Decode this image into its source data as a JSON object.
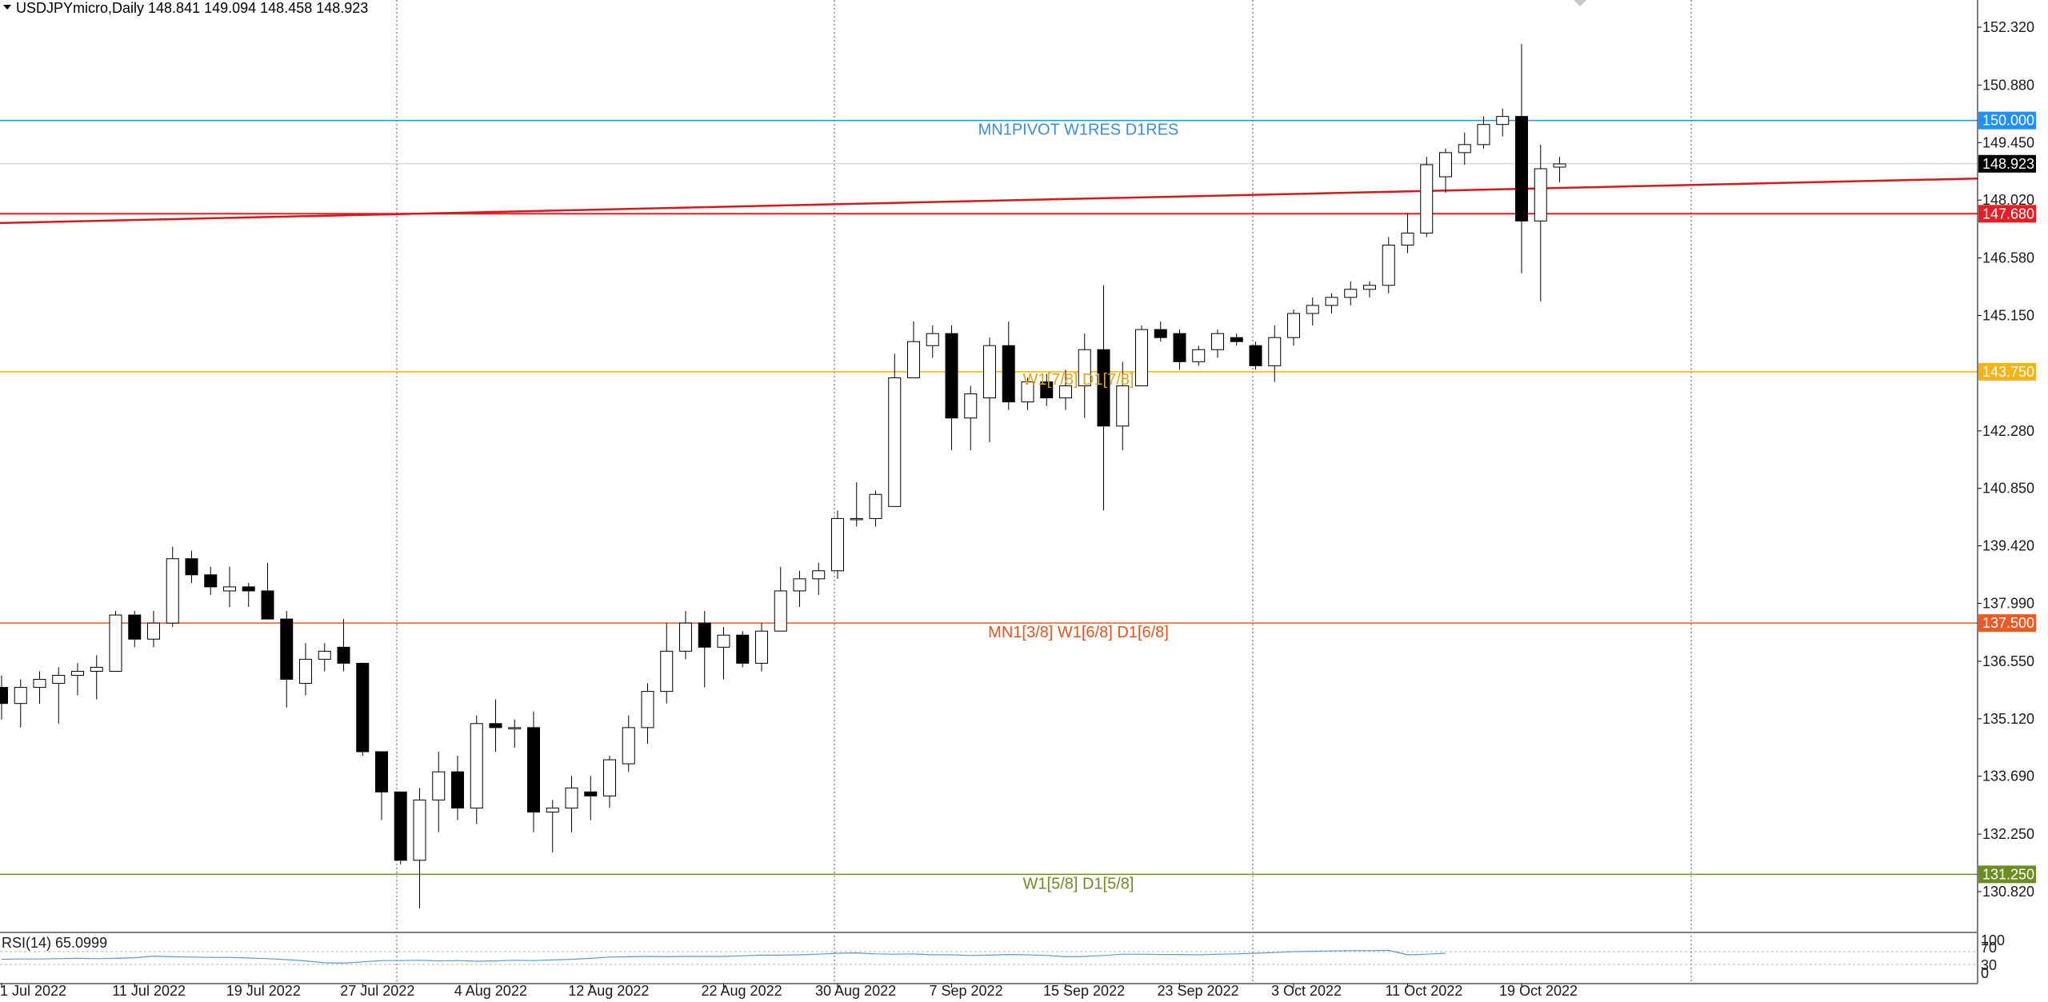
{
  "header": {
    "symbol_line": "USDJPYmicro,Daily  148.841 149.094 148.458 148.923"
  },
  "rsi": {
    "label": "RSI(14) 65.0999",
    "levels": [
      "100",
      "70",
      "30",
      "0"
    ],
    "values": [
      46,
      47,
      47,
      48,
      49,
      48,
      49,
      51,
      56,
      54,
      53,
      52,
      52,
      50,
      48,
      45,
      41,
      35,
      34,
      38,
      42,
      42,
      43,
      41,
      42,
      40,
      41,
      43,
      42,
      44,
      46,
      49,
      53,
      54,
      55,
      54,
      55,
      55,
      55,
      57,
      59,
      59,
      60,
      62,
      65,
      66,
      63,
      62,
      63,
      60,
      60,
      58,
      59,
      61,
      60,
      58,
      54,
      55,
      58,
      62,
      62,
      61,
      61,
      60,
      62,
      63,
      65,
      67,
      70,
      71,
      72,
      73,
      73,
      74,
      60,
      62,
      65
    ]
  },
  "price_tags": {
    "current": "148.923",
    "levels": [
      {
        "text": "150.000",
        "color": "#1e90ff"
      },
      {
        "text": "147.680",
        "color": "#e31e24"
      },
      {
        "text": "143.750",
        "color": "#f5b317"
      },
      {
        "text": "137.500",
        "color": "#f05a22"
      },
      {
        "text": "131.250",
        "color": "#6b8e23"
      }
    ]
  },
  "level_labels": [
    {
      "text": "MN1PIVOT W1RES D1RES",
      "color": "#3a8fd9"
    },
    {
      "text": "W1[7/8] D1[7/8]",
      "color": "#e0a31c"
    },
    {
      "text": "MN1[3/8] W1[6/8] D1[6/8]",
      "color": "#e5561f"
    },
    {
      "text": "W1[5/8] D1[5/8]",
      "color": "#6b8e23"
    }
  ],
  "chart_data": {
    "type": "candlestick",
    "symbol": "USDJPYmicro",
    "timeframe": "Daily",
    "last_ohlc": {
      "open": 148.841,
      "high": 149.094,
      "low": 148.458,
      "close": 148.923
    },
    "y_ticks": [
      152.32,
      150.88,
      149.45,
      148.02,
      146.58,
      145.15,
      142.28,
      140.85,
      139.42,
      137.99,
      136.55,
      135.12,
      133.69,
      132.25,
      130.82
    ],
    "y_tick_labels": [
      "152.320",
      "150.880",
      "149.450",
      "148.020",
      "146.580",
      "145.150",
      "142.280",
      "140.850",
      "139.420",
      "137.990",
      "136.550",
      "135.120",
      "133.690",
      "132.250",
      "130.820"
    ],
    "ylim": [
      129.6,
      152.9
    ],
    "x_tick_labels": [
      "1 Jul 2022",
      "11 Jul 2022",
      "19 Jul 2022",
      "27 Jul 2022",
      "4 Aug 2022",
      "12 Aug 2022",
      "22 Aug 2022",
      "30 Aug 2022",
      "7 Sep 2022",
      "15 Sep 2022",
      "23 Sep 2022",
      "3 Oct 2022",
      "11 Oct 2022",
      "19 Oct 2022"
    ],
    "x_tick_bar_index": [
      0,
      7,
      13,
      19,
      25,
      31,
      38,
      44,
      50,
      56,
      62,
      68,
      74,
      80
    ],
    "horizontal_levels": [
      150.0,
      147.68,
      143.75,
      137.5,
      131.25
    ],
    "trendline": {
      "from_bar": 0,
      "from_price": 147.45,
      "to_bar": 110,
      "to_price": 148.62
    },
    "candles": [
      {
        "o": 135.9,
        "h": 136.2,
        "l": 135.1,
        "c": 135.5
      },
      {
        "o": 135.5,
        "h": 136.1,
        "l": 134.9,
        "c": 135.9
      },
      {
        "o": 135.9,
        "h": 136.3,
        "l": 135.5,
        "c": 136.1
      },
      {
        "o": 136.0,
        "h": 136.4,
        "l": 135.0,
        "c": 136.2
      },
      {
        "o": 136.2,
        "h": 136.5,
        "l": 135.7,
        "c": 136.3
      },
      {
        "o": 136.3,
        "h": 136.7,
        "l": 135.6,
        "c": 136.4
      },
      {
        "o": 136.3,
        "h": 137.8,
        "l": 136.3,
        "c": 137.7
      },
      {
        "o": 137.7,
        "h": 137.8,
        "l": 136.9,
        "c": 137.1
      },
      {
        "o": 137.1,
        "h": 137.8,
        "l": 136.9,
        "c": 137.5
      },
      {
        "o": 137.5,
        "h": 139.4,
        "l": 137.4,
        "c": 139.1
      },
      {
        "o": 139.1,
        "h": 139.3,
        "l": 138.5,
        "c": 138.7
      },
      {
        "o": 138.7,
        "h": 138.9,
        "l": 138.2,
        "c": 138.4
      },
      {
        "o": 138.3,
        "h": 138.9,
        "l": 137.9,
        "c": 138.4
      },
      {
        "o": 138.4,
        "h": 138.5,
        "l": 137.9,
        "c": 138.3
      },
      {
        "o": 138.3,
        "h": 139.0,
        "l": 137.6,
        "c": 137.6
      },
      {
        "o": 137.6,
        "h": 137.8,
        "l": 135.4,
        "c": 136.1
      },
      {
        "o": 136.0,
        "h": 137.0,
        "l": 135.7,
        "c": 136.6
      },
      {
        "o": 136.6,
        "h": 137.0,
        "l": 136.3,
        "c": 136.8
      },
      {
        "o": 136.9,
        "h": 137.6,
        "l": 136.3,
        "c": 136.5
      },
      {
        "o": 136.5,
        "h": 136.5,
        "l": 134.2,
        "c": 134.3
      },
      {
        "o": 134.3,
        "h": 134.3,
        "l": 132.6,
        "c": 133.3
      },
      {
        "o": 133.3,
        "h": 133.3,
        "l": 131.5,
        "c": 131.6
      },
      {
        "o": 131.6,
        "h": 133.4,
        "l": 130.4,
        "c": 133.1
      },
      {
        "o": 133.1,
        "h": 134.3,
        "l": 132.3,
        "c": 133.8
      },
      {
        "o": 133.8,
        "h": 134.2,
        "l": 132.6,
        "c": 132.9
      },
      {
        "o": 132.9,
        "h": 135.2,
        "l": 132.5,
        "c": 135.0
      },
      {
        "o": 135.0,
        "h": 135.6,
        "l": 134.3,
        "c": 134.9
      },
      {
        "o": 134.9,
        "h": 135.1,
        "l": 134.4,
        "c": 134.9
      },
      {
        "o": 134.9,
        "h": 135.3,
        "l": 132.3,
        "c": 132.8
      },
      {
        "o": 132.8,
        "h": 133.1,
        "l": 131.8,
        "c": 132.9
      },
      {
        "o": 132.9,
        "h": 133.7,
        "l": 132.3,
        "c": 133.4
      },
      {
        "o": 133.3,
        "h": 133.7,
        "l": 132.6,
        "c": 133.2
      },
      {
        "o": 133.2,
        "h": 134.2,
        "l": 132.9,
        "c": 134.1
      },
      {
        "o": 134.0,
        "h": 135.2,
        "l": 133.8,
        "c": 134.9
      },
      {
        "o": 134.9,
        "h": 136.0,
        "l": 134.5,
        "c": 135.8
      },
      {
        "o": 135.8,
        "h": 137.5,
        "l": 135.5,
        "c": 136.8
      },
      {
        "o": 136.8,
        "h": 137.8,
        "l": 136.6,
        "c": 137.5
      },
      {
        "o": 137.5,
        "h": 137.8,
        "l": 135.9,
        "c": 136.9
      },
      {
        "o": 136.9,
        "h": 137.4,
        "l": 136.1,
        "c": 137.2
      },
      {
        "o": 137.2,
        "h": 137.3,
        "l": 136.4,
        "c": 136.5
      },
      {
        "o": 136.5,
        "h": 137.5,
        "l": 136.3,
        "c": 137.3
      },
      {
        "o": 137.3,
        "h": 138.9,
        "l": 137.3,
        "c": 138.3
      },
      {
        "o": 138.3,
        "h": 138.8,
        "l": 137.9,
        "c": 138.6
      },
      {
        "o": 138.6,
        "h": 139.0,
        "l": 138.2,
        "c": 138.8
      },
      {
        "o": 138.8,
        "h": 140.3,
        "l": 138.6,
        "c": 140.1
      },
      {
        "o": 140.1,
        "h": 141.0,
        "l": 139.9,
        "c": 140.1
      },
      {
        "o": 140.1,
        "h": 140.8,
        "l": 139.9,
        "c": 140.7
      },
      {
        "o": 140.4,
        "h": 144.2,
        "l": 140.4,
        "c": 143.6
      },
      {
        "o": 143.6,
        "h": 145.0,
        "l": 143.6,
        "c": 144.5
      },
      {
        "o": 144.4,
        "h": 144.9,
        "l": 144.1,
        "c": 144.7
      },
      {
        "o": 144.7,
        "h": 144.9,
        "l": 141.8,
        "c": 142.6
      },
      {
        "o": 142.6,
        "h": 143.4,
        "l": 141.8,
        "c": 143.2
      },
      {
        "o": 143.1,
        "h": 144.6,
        "l": 142.0,
        "c": 144.4
      },
      {
        "o": 144.4,
        "h": 145.0,
        "l": 142.8,
        "c": 143.0
      },
      {
        "o": 143.0,
        "h": 143.6,
        "l": 142.8,
        "c": 143.5
      },
      {
        "o": 143.5,
        "h": 143.7,
        "l": 142.9,
        "c": 143.1
      },
      {
        "o": 143.1,
        "h": 143.8,
        "l": 142.8,
        "c": 143.4
      },
      {
        "o": 143.4,
        "h": 144.7,
        "l": 142.6,
        "c": 144.3
      },
      {
        "o": 144.3,
        "h": 145.9,
        "l": 140.3,
        "c": 142.4
      },
      {
        "o": 142.4,
        "h": 144.0,
        "l": 141.8,
        "c": 143.4
      },
      {
        "o": 143.4,
        "h": 144.9,
        "l": 143.4,
        "c": 144.8
      },
      {
        "o": 144.8,
        "h": 145.0,
        "l": 144.5,
        "c": 144.6
      },
      {
        "o": 144.7,
        "h": 144.8,
        "l": 143.8,
        "c": 144.0
      },
      {
        "o": 144.0,
        "h": 144.4,
        "l": 143.9,
        "c": 144.3
      },
      {
        "o": 144.3,
        "h": 144.8,
        "l": 144.1,
        "c": 144.7
      },
      {
        "o": 144.6,
        "h": 144.7,
        "l": 144.4,
        "c": 144.5
      },
      {
        "o": 144.4,
        "h": 144.5,
        "l": 143.8,
        "c": 143.9
      },
      {
        "o": 143.9,
        "h": 144.9,
        "l": 143.5,
        "c": 144.6
      },
      {
        "o": 144.6,
        "h": 145.3,
        "l": 144.4,
        "c": 145.2
      },
      {
        "o": 145.2,
        "h": 145.6,
        "l": 144.9,
        "c": 145.4
      },
      {
        "o": 145.4,
        "h": 145.7,
        "l": 145.2,
        "c": 145.6
      },
      {
        "o": 145.6,
        "h": 146.0,
        "l": 145.4,
        "c": 145.8
      },
      {
        "o": 145.8,
        "h": 146.0,
        "l": 145.6,
        "c": 145.9
      },
      {
        "o": 145.9,
        "h": 147.1,
        "l": 145.7,
        "c": 146.9
      },
      {
        "o": 146.9,
        "h": 147.7,
        "l": 146.7,
        "c": 147.2
      },
      {
        "o": 147.2,
        "h": 149.1,
        "l": 147.1,
        "c": 148.9
      },
      {
        "o": 148.6,
        "h": 149.3,
        "l": 148.2,
        "c": 149.2
      },
      {
        "o": 149.2,
        "h": 149.7,
        "l": 148.9,
        "c": 149.4
      },
      {
        "o": 149.4,
        "h": 150.1,
        "l": 149.3,
        "c": 149.9
      },
      {
        "o": 149.9,
        "h": 150.3,
        "l": 149.6,
        "c": 150.1
      },
      {
        "o": 150.1,
        "h": 151.9,
        "l": 146.2,
        "c": 147.5
      },
      {
        "o": 147.5,
        "h": 149.4,
        "l": 145.5,
        "c": 148.8
      },
      {
        "o": 148.84,
        "h": 149.09,
        "l": 148.46,
        "c": 148.92
      }
    ]
  }
}
